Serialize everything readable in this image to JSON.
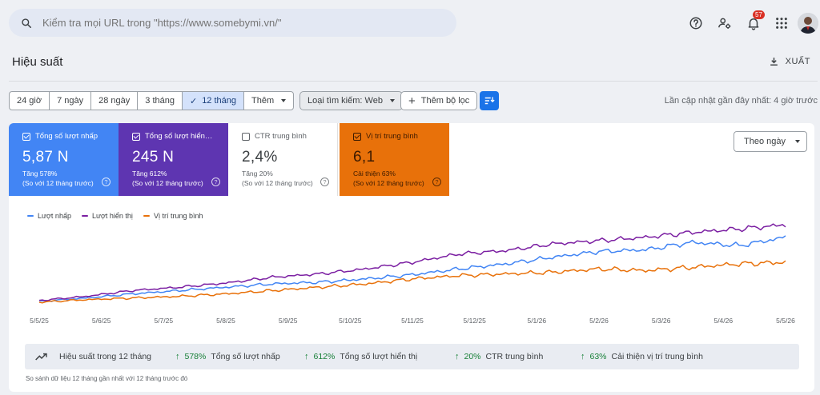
{
  "search": {
    "placeholder": "Kiểm tra mọi URL trong \"https://www.somebymi.vn/\""
  },
  "topbar": {
    "notification_count": "57"
  },
  "header": {
    "title": "Hiệu suất",
    "export_label": "XUẤT"
  },
  "filters": {
    "ranges": [
      "24 giờ",
      "7 ngày",
      "28 ngày",
      "3 tháng",
      "12 tháng"
    ],
    "active_range": "12 tháng",
    "more_label": "Thêm",
    "search_type": "Loại tìm kiếm: Web",
    "add_filter": "Thêm bộ lọc",
    "last_updated": "Lần cập nhật gần đây nhất: 4 giờ trước"
  },
  "metrics": [
    {
      "label": "Tổng số lượt nhấp",
      "value": "5,87 N",
      "change": "Tăng 578%",
      "compare": "(So với 12 tháng trước)",
      "selected": true,
      "color": "#4285f4"
    },
    {
      "label": "Tổng số lượt hiển…",
      "value": "245 N",
      "change": "Tăng 612%",
      "compare": "(So với 12 tháng trước)",
      "selected": true,
      "color": "#5e35b1"
    },
    {
      "label": "CTR trung bình",
      "value": "2,4%",
      "change": "Tăng 20%",
      "compare": "(So với 12 tháng trước)",
      "selected": false,
      "color": "#ffffff"
    },
    {
      "label": "Vị trí trung bình",
      "value": "6,1",
      "change": "Cải thiện 63%",
      "compare": "(So với 12 tháng trước)",
      "selected": true,
      "color": "#e8710a"
    }
  ],
  "granularity": "Theo ngày",
  "chart_data": {
    "type": "line",
    "x_ticks": [
      "5/5/25",
      "5/6/25",
      "5/7/25",
      "5/8/25",
      "5/9/25",
      "5/10/25",
      "5/11/25",
      "5/12/25",
      "5/1/26",
      "5/2/26",
      "5/3/26",
      "5/4/26",
      "5/5/26"
    ],
    "x_range": [
      "5/5/25",
      "5/5/26"
    ],
    "grid": false,
    "legend_position": "top-left",
    "y_scale": "each series on its own hidden axis, 0-100 relative",
    "series": [
      {
        "name": "Lượt nhấp",
        "color": "#4285f4",
        "values": [
          3,
          7,
          12,
          16,
          20,
          24,
          26,
          30,
          35,
          42,
          48,
          56,
          63,
          65,
          74,
          70,
          80
        ]
      },
      {
        "name": "Lượt hiển thị",
        "color": "#7b1fa2",
        "values": [
          4,
          9,
          16,
          20,
          25,
          32,
          36,
          42,
          50,
          60,
          64,
          72,
          76,
          80,
          86,
          90,
          95
        ]
      },
      {
        "name": "Vị trí trung bình",
        "color": "#e8710a",
        "values": [
          2,
          5,
          7,
          9,
          12,
          16,
          20,
          24,
          30,
          34,
          36,
          38,
          42,
          40,
          44,
          48,
          50
        ]
      }
    ]
  },
  "summary": {
    "title": "Hiệu suất trong 12 tháng",
    "stats": [
      {
        "value": "578%",
        "label": "Tổng số lượt nhấp"
      },
      {
        "value": "612%",
        "label": "Tổng số lượt hiển thị"
      },
      {
        "value": "20%",
        "label": "CTR trung bình"
      },
      {
        "value": "63%",
        "label": "Cải thiện vị trí trung bình"
      }
    ],
    "footnote": "So sánh dữ liệu 12 tháng gần nhất với 12 tháng trước đó"
  }
}
